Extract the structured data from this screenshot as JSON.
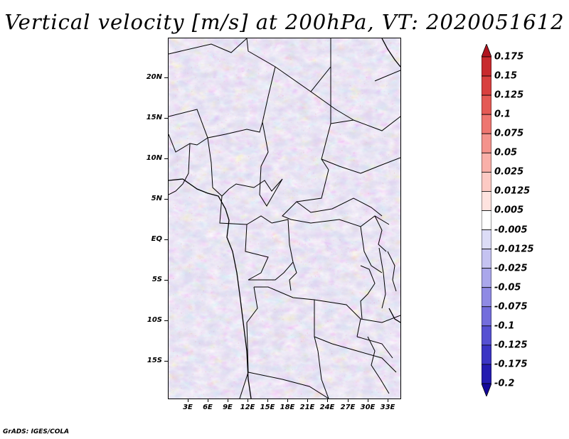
{
  "title": "Vertical velocity [m/s] at 200hPa, VT: 2020051612",
  "footer": "GrADS: IGES/COLA",
  "map": {
    "region": "Central Africa",
    "lat_labels": [
      "20N",
      "15N",
      "10N",
      "5N",
      "EQ",
      "5S",
      "10S",
      "15S"
    ],
    "lon_labels": [
      "3E",
      "6E",
      "9E",
      "12E",
      "15E",
      "18E",
      "21E",
      "24E",
      "27E",
      "30E",
      "33E"
    ]
  },
  "colorbar": {
    "labels": [
      "0.175",
      "0.15",
      "0.125",
      "0.1",
      "0.075",
      "0.05",
      "0.025",
      "0.0125",
      "0.005",
      "-0.005",
      "-0.0125",
      "-0.025",
      "-0.05",
      "-0.075",
      "-0.1",
      "-0.125",
      "-0.175",
      "-0.2"
    ],
    "colors": [
      "#b0141f",
      "#c82a2e",
      "#d8403f",
      "#e45a55",
      "#ee7670",
      "#f4938c",
      "#f9b0a9",
      "#fccac4",
      "#fee3df",
      "#ffffff",
      "#dcdcf6",
      "#c5c3f1",
      "#aaa7eb",
      "#8f8ae4",
      "#736ddc",
      "#5650d2",
      "#3b34c4",
      "#241bb0",
      "#14089a"
    ]
  }
}
